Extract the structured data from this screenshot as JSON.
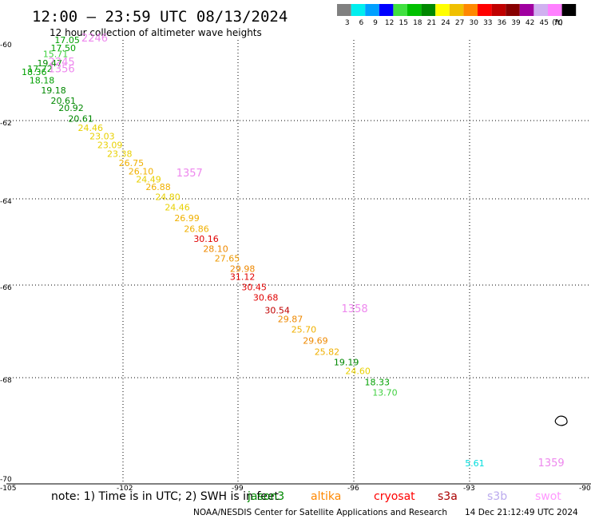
{
  "header": {
    "title": "12:00 — 23:59 UTC 08/13/2024",
    "subtitle": "12 hour collection of altimeter wave heights"
  },
  "legend": {
    "unit": "(ft)",
    "bins": [
      {
        "label": "3",
        "color": "#808080"
      },
      {
        "label": "6",
        "color": "#00eeee"
      },
      {
        "label": "9",
        "color": "#00a0ff"
      },
      {
        "label": "12",
        "color": "#0000ff"
      },
      {
        "label": "15",
        "color": "#40e040"
      },
      {
        "label": "18",
        "color": "#00c000"
      },
      {
        "label": "21",
        "color": "#008800"
      },
      {
        "label": "24",
        "color": "#ffff00"
      },
      {
        "label": "27",
        "color": "#f0c000"
      },
      {
        "label": "30",
        "color": "#ff8800"
      },
      {
        "label": "33",
        "color": "#ff0000"
      },
      {
        "label": "36",
        "color": "#c00000"
      },
      {
        "label": "39",
        "color": "#880000"
      },
      {
        "label": "42",
        "color": "#a000a0"
      },
      {
        "label": "45",
        "color": "#d0b0f0"
      },
      {
        "label": "70",
        "color": "#ff80ff"
      },
      {
        "label": "",
        "color": "#000000"
      }
    ]
  },
  "axes": {
    "lon_labels": [
      "-105",
      "-102",
      "-99",
      "-96",
      "-93",
      "-90"
    ],
    "lat_labels": [
      "-60",
      "-62",
      "-64",
      "-66",
      "-68",
      "-70"
    ]
  },
  "observations": [
    {
      "text": "17.05",
      "lon": -103.76,
      "lat": -60.02,
      "color": "#00a000"
    },
    {
      "text": "17.50",
      "lon": -103.86,
      "lat": -60.22,
      "color": "#00a000"
    },
    {
      "text": "15.71",
      "lon": -104.06,
      "lat": -60.38,
      "color": "#40d040"
    },
    {
      "text": "19.47",
      "lon": -104.21,
      "lat": -60.61,
      "color": "#008800"
    },
    {
      "text": "17.72",
      "lon": -104.46,
      "lat": -60.76,
      "color": "#00a000"
    },
    {
      "text": "18.36",
      "lon": -104.61,
      "lat": -60.84,
      "color": "#00a000"
    },
    {
      "text": "18.18",
      "lon": -104.41,
      "lat": -61.05,
      "color": "#00a000"
    },
    {
      "text": "19.18",
      "lon": -104.11,
      "lat": -61.31,
      "color": "#008800"
    },
    {
      "text": "20.61",
      "lon": -103.86,
      "lat": -61.57,
      "color": "#008800"
    },
    {
      "text": "20.92",
      "lon": -103.66,
      "lat": -61.76,
      "color": "#008800"
    },
    {
      "text": "20.61",
      "lon": -103.41,
      "lat": -62.03,
      "color": "#008800"
    },
    {
      "text": "24.46",
      "lon": -103.16,
      "lat": -62.27,
      "color": "#e8d000"
    },
    {
      "text": "23.03",
      "lon": -102.86,
      "lat": -62.48,
      "color": "#e8d000"
    },
    {
      "text": "23.09",
      "lon": -102.66,
      "lat": -62.7,
      "color": "#e8d000"
    },
    {
      "text": "23.38",
      "lon": -102.41,
      "lat": -62.93,
      "color": "#e8d000"
    },
    {
      "text": "26.75",
      "lon": -102.11,
      "lat": -63.16,
      "color": "#f0b000"
    },
    {
      "text": "26.10",
      "lon": -101.86,
      "lat": -63.38,
      "color": "#f0b000"
    },
    {
      "text": "24.49",
      "lon": -101.66,
      "lat": -63.58,
      "color": "#e8d000"
    },
    {
      "text": "26.88",
      "lon": -101.41,
      "lat": -63.78,
      "color": "#f0b000"
    },
    {
      "text": "24.80",
      "lon": -101.16,
      "lat": -64.03,
      "color": "#e8d000"
    },
    {
      "text": "24.46",
      "lon": -100.91,
      "lat": -64.27,
      "color": "#e8d000"
    },
    {
      "text": "26.99",
      "lon": -100.66,
      "lat": -64.52,
      "color": "#f0b000"
    },
    {
      "text": "26.86",
      "lon": -100.41,
      "lat": -64.77,
      "color": "#f0b000"
    },
    {
      "text": "30.16",
      "lon": -100.16,
      "lat": -65.0,
      "color": "#e00000"
    },
    {
      "text": "28.10",
      "lon": -99.91,
      "lat": -65.23,
      "color": "#ee8800"
    },
    {
      "text": "27.65",
      "lon": -99.61,
      "lat": -65.45,
      "color": "#ee9900"
    },
    {
      "text": "29.98",
      "lon": -99.21,
      "lat": -65.69,
      "color": "#ee8800"
    },
    {
      "text": "31.12",
      "lon": -99.21,
      "lat": -65.88,
      "color": "#e00000"
    },
    {
      "text": "30.45",
      "lon": -98.91,
      "lat": -66.11,
      "color": "#e00000"
    },
    {
      "text": "30.68",
      "lon": -98.61,
      "lat": -66.34,
      "color": "#e00000"
    },
    {
      "text": "30.54",
      "lon": -98.31,
      "lat": -66.61,
      "color": "#c00000"
    },
    {
      "text": "29.87",
      "lon": -97.97,
      "lat": -66.8,
      "color": "#ee8800"
    },
    {
      "text": "25.70",
      "lon": -97.62,
      "lat": -67.03,
      "color": "#f0b000"
    },
    {
      "text": "29.69",
      "lon": -97.32,
      "lat": -67.27,
      "color": "#ee8800"
    },
    {
      "text": "25.82",
      "lon": -97.02,
      "lat": -67.51,
      "color": "#f0b000"
    },
    {
      "text": "19.19",
      "lon": -96.52,
      "lat": -67.73,
      "color": "#008800"
    },
    {
      "text": "24.60",
      "lon": -96.22,
      "lat": -67.92,
      "color": "#e8d000"
    },
    {
      "text": "18.33",
      "lon": -95.72,
      "lat": -68.15,
      "color": "#00a000"
    },
    {
      "text": "13.70",
      "lon": -95.52,
      "lat": -68.36,
      "color": "#40d040"
    },
    {
      "text": "5.61",
      "lon": -93.12,
      "lat": -69.79,
      "color": "#00dddd"
    }
  ],
  "orbits": [
    {
      "text": "2246",
      "lon": -103.07,
      "lat": -59.98
    },
    {
      "text": "2245",
      "lon": -103.92,
      "lat": -60.59
    },
    {
      "text": "1356",
      "lon": -103.92,
      "lat": -60.77
    },
    {
      "text": "1357",
      "lon": -100.61,
      "lat": -63.43
    },
    {
      "text": "1358",
      "lon": -96.32,
      "lat": -66.59
    },
    {
      "text": "1359",
      "lon": -91.23,
      "lat": -69.79
    }
  ],
  "orbit_color": "#ee88ee",
  "note": {
    "text": "note: 1) Time is in UTC; 2) SWH is in feet"
  },
  "satellites": [
    {
      "name": "jason3",
      "color": "#008800"
    },
    {
      "name": "altika",
      "color": "#ff8800"
    },
    {
      "name": "cryosat",
      "color": "#ff0000"
    },
    {
      "name": "s3a",
      "color": "#aa0000"
    },
    {
      "name": "s3b",
      "color": "#bbaaee"
    },
    {
      "name": "swot",
      "color": "#ff99ff"
    }
  ],
  "footer": {
    "credit": "NOAA/NESDIS Center for Satellite Applications and Research",
    "timestamp": "14 Dec 21:12:49 UTC 2024"
  }
}
